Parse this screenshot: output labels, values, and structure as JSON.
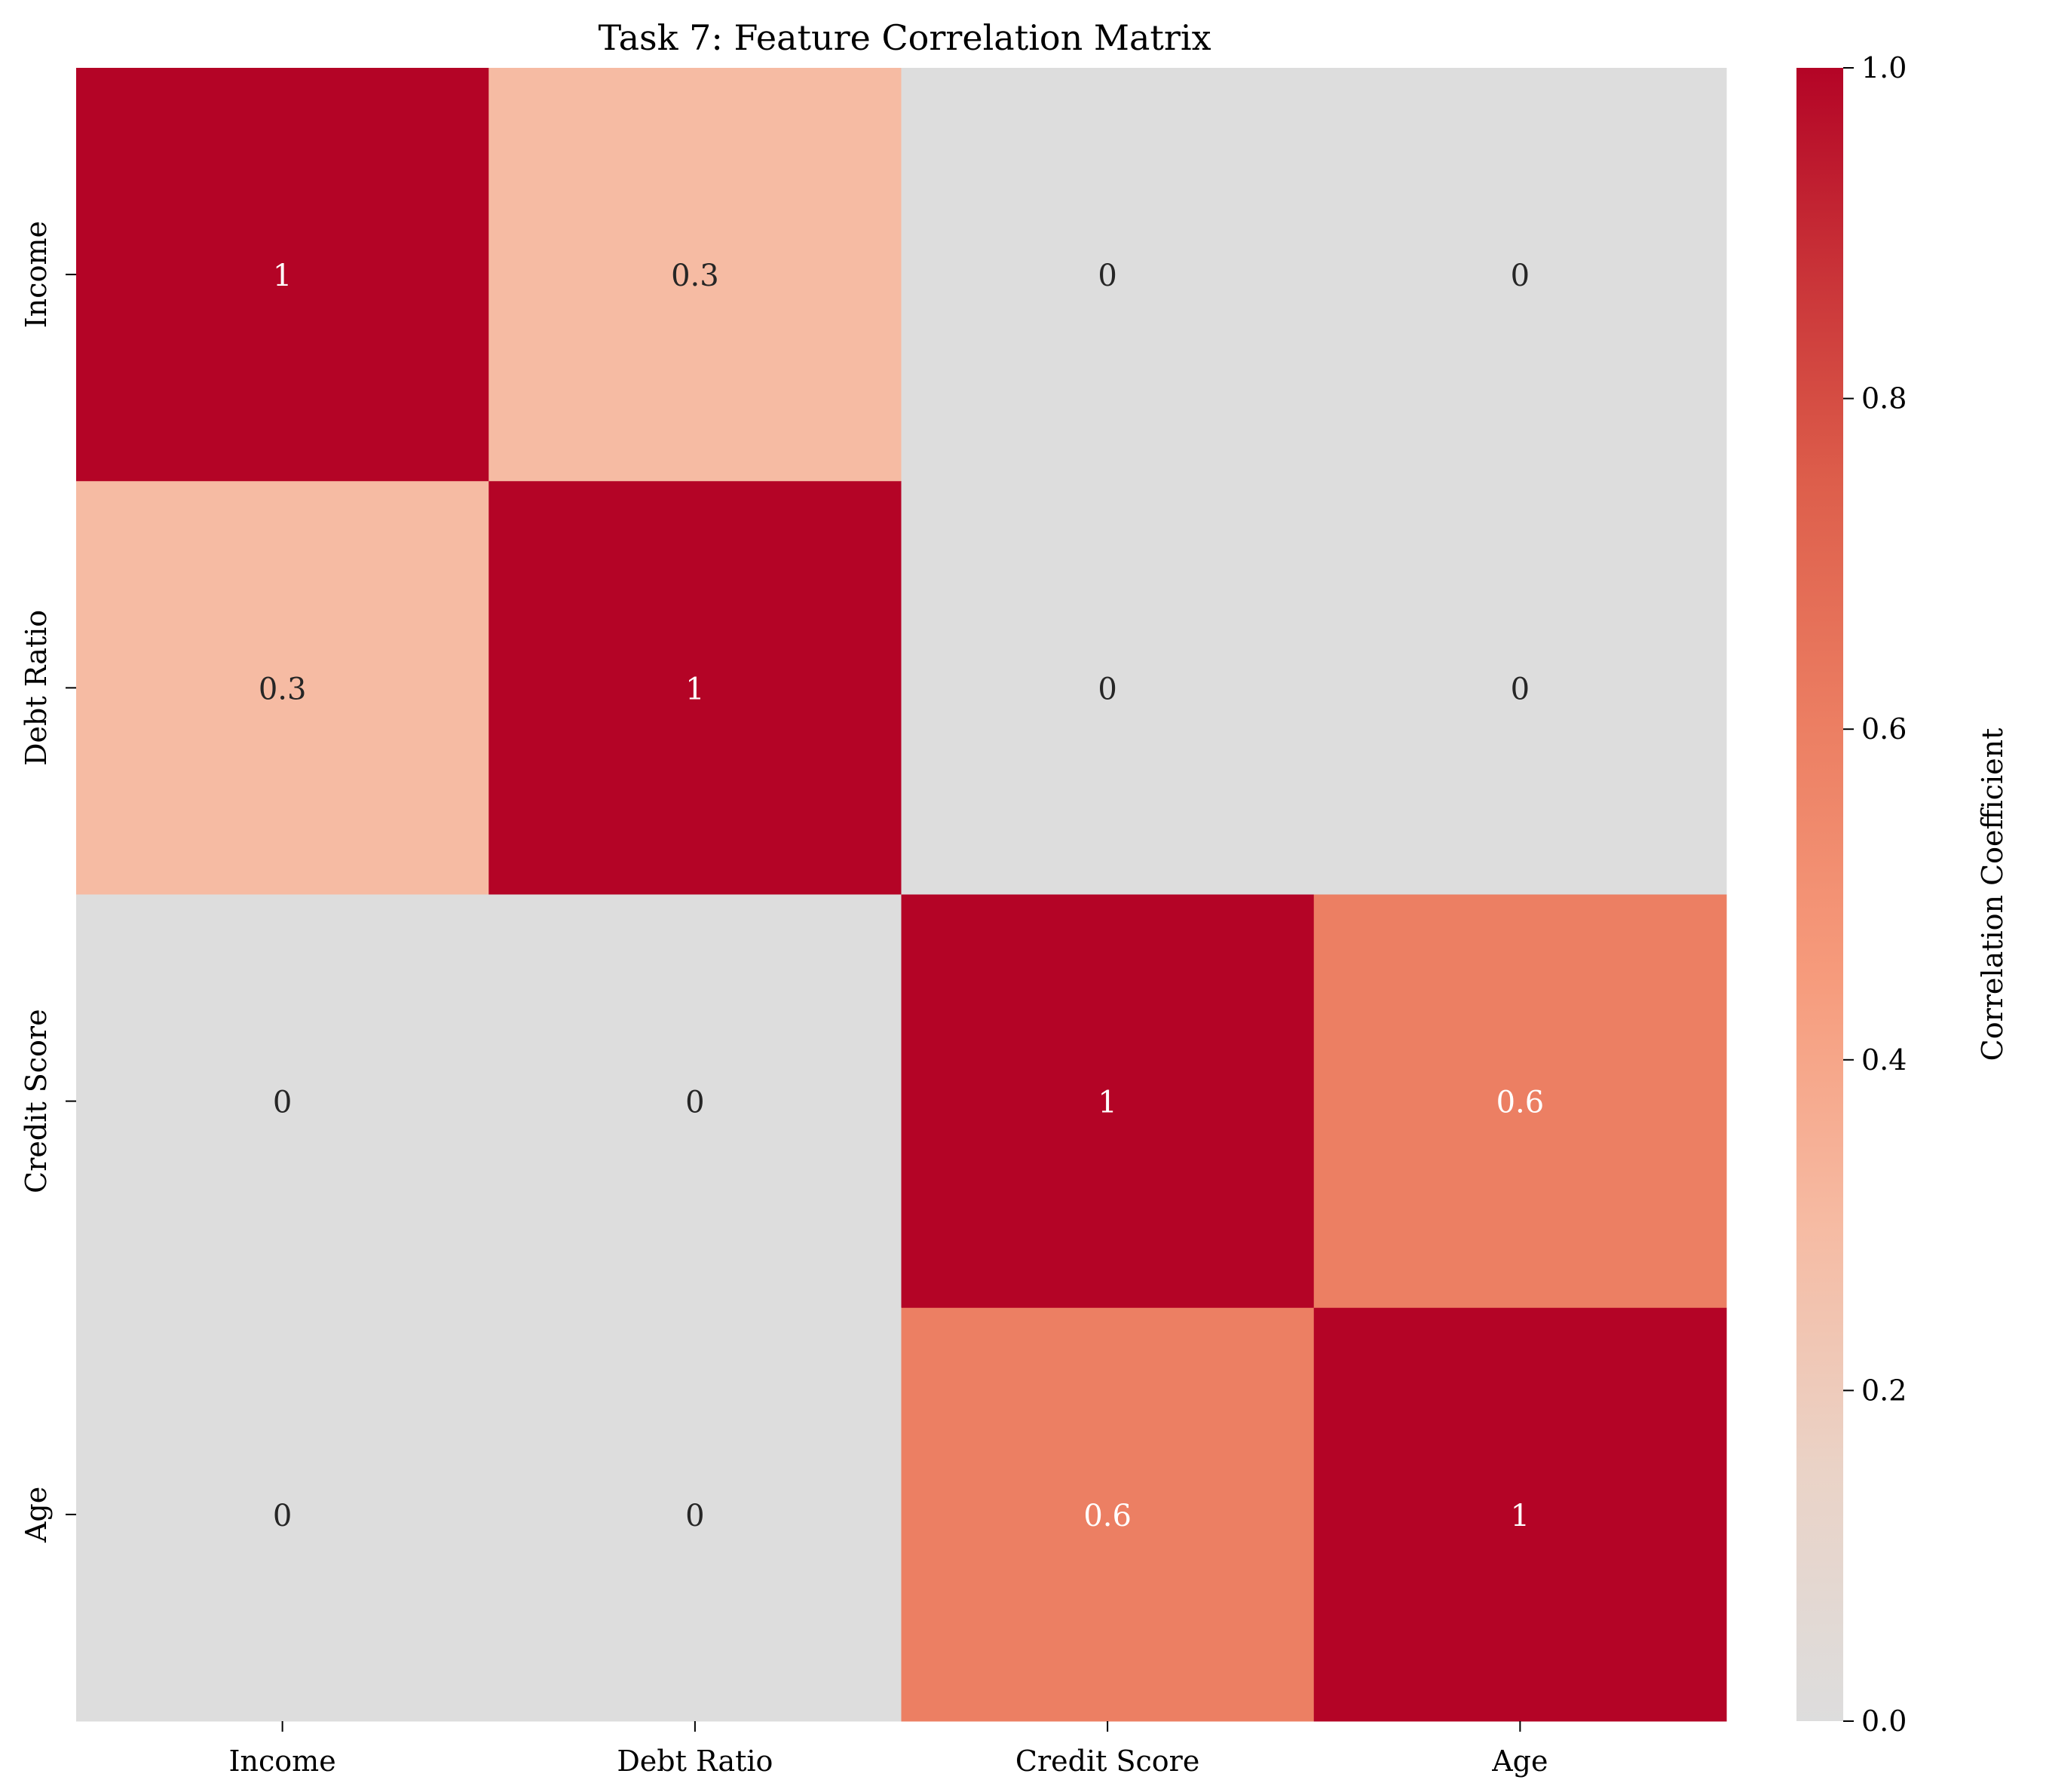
{
  "chart_data": {
    "type": "heatmap",
    "title": "Task 7: Feature Correlation Matrix",
    "x_categories": [
      "Income",
      "Debt Ratio",
      "Credit Score",
      "Age"
    ],
    "y_categories": [
      "Income",
      "Debt Ratio",
      "Credit Score",
      "Age"
    ],
    "values": [
      [
        1,
        0.3,
        0,
        0
      ],
      [
        0.3,
        1,
        0,
        0
      ],
      [
        0,
        0,
        1,
        0.6
      ],
      [
        0,
        0,
        0.6,
        1
      ]
    ],
    "cell_labels": [
      [
        "1",
        "0.3",
        "0",
        "0"
      ],
      [
        "0.3",
        "1",
        "0",
        "0"
      ],
      [
        "0",
        "0",
        "1",
        "0.6"
      ],
      [
        "0",
        "0",
        "0.6",
        "1"
      ]
    ],
    "colorbar": {
      "label": "Correlation Coefficient",
      "range": [
        0,
        1
      ],
      "ticks": [
        0.0,
        0.2,
        0.4,
        0.6,
        0.8,
        1.0
      ],
      "tick_labels": [
        "0.0",
        "0.2",
        "0.4",
        "0.6",
        "0.8",
        "1.0"
      ]
    },
    "colormap": "coolwarm-upper-half",
    "colors": {
      "low": "#dddddd",
      "high": "#b40426"
    },
    "grid": false,
    "legend": "colorbar-right"
  }
}
